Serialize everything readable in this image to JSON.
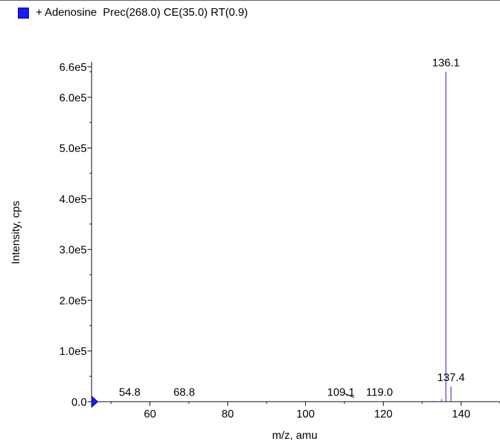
{
  "legend": {
    "label": "+ Adenosine  Prec(268.0) CE(35.0) RT(0.9)",
    "swatch_color": "#1a1aff"
  },
  "chart_data": {
    "type": "bar",
    "title": "",
    "xlabel": "m/z, amu",
    "ylabel": "Intensity, cps",
    "xlim": [
      45,
      150
    ],
    "ylim": [
      0,
      660000
    ],
    "x_ticks": [
      60,
      80,
      100,
      120,
      140
    ],
    "x_tick_labels": [
      "60",
      "80",
      "100",
      "120",
      "140"
    ],
    "y_ticks": [
      0,
      100000,
      200000,
      300000,
      400000,
      500000,
      600000,
      660000
    ],
    "y_tick_labels": [
      "0.0",
      "1.0e5",
      "2.0e5",
      "3.0e5",
      "4.0e5",
      "5.0e5",
      "6.0e5",
      "6.6e5"
    ],
    "series_color": "#3b3bc4",
    "peaks": [
      {
        "mz": 54.8,
        "intensity": 800
      },
      {
        "mz": 68.8,
        "intensity": 600
      },
      {
        "mz": 109.1,
        "intensity": 900
      },
      {
        "mz": 119.0,
        "intensity": 700
      },
      {
        "mz": 133.0,
        "intensity": 1500
      },
      {
        "mz": 135.0,
        "intensity": 5000
      },
      {
        "mz": 136.1,
        "intensity": 650000
      },
      {
        "mz": 137.4,
        "intensity": 30000
      }
    ],
    "peak_labels": [
      {
        "text": "54.8",
        "mz": 54.8
      },
      {
        "text": "68.8",
        "mz": 68.8
      },
      {
        "text": "109.1",
        "mz": 109.1
      },
      {
        "text": "119.0",
        "mz": 119.0
      },
      {
        "text": "136.1",
        "mz": 136.1
      },
      {
        "text": "137.4",
        "mz": 137.4
      }
    ],
    "grid": false,
    "legend_position": "top-left"
  }
}
